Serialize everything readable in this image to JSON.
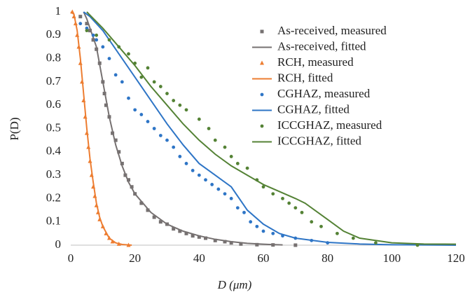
{
  "chart_data": {
    "type": "scatter",
    "xlabel": "D (μm)",
    "ylabel": "P(D)",
    "xlim": [
      0,
      120
    ],
    "xticks": [
      0,
      20,
      40,
      60,
      80,
      100,
      120
    ],
    "ylim": [
      0,
      1
    ],
    "yticks": [
      0,
      0.1,
      0.2,
      0.3,
      0.4,
      0.5,
      0.6,
      0.7,
      0.8,
      0.9,
      1
    ],
    "legend": "top-right",
    "series": [
      {
        "name": "As-received, measured",
        "color": "#767171",
        "style": "marker",
        "marker": "square",
        "x": [
          3,
          5,
          6,
          7,
          8,
          9,
          10,
          10.5,
          11,
          12,
          13,
          14,
          15,
          16,
          17,
          18,
          19,
          20,
          22,
          24,
          26,
          28,
          30,
          32,
          34,
          36,
          38,
          40,
          42,
          45,
          48,
          50,
          53,
          58,
          63,
          70
        ],
        "values": [
          0.98,
          0.95,
          0.92,
          0.88,
          0.84,
          0.78,
          0.7,
          0.65,
          0.6,
          0.55,
          0.48,
          0.45,
          0.4,
          0.35,
          0.3,
          0.28,
          0.25,
          0.22,
          0.18,
          0.15,
          0.12,
          0.1,
          0.09,
          0.07,
          0.06,
          0.05,
          0.04,
          0.035,
          0.03,
          0.02,
          0.015,
          0.01,
          0.005,
          0.002,
          0.001,
          0
        ]
      },
      {
        "name": "As-received, fitted",
        "color": "#767171",
        "style": "line",
        "x": [
          4,
          5,
          8,
          10,
          12,
          14,
          16,
          18,
          20,
          25,
          30,
          35,
          40,
          45,
          50,
          55,
          60,
          66
        ],
        "values": [
          1,
          0.97,
          0.85,
          0.7,
          0.55,
          0.43,
          0.34,
          0.27,
          0.22,
          0.14,
          0.09,
          0.06,
          0.04,
          0.025,
          0.015,
          0.008,
          0.004,
          0.001
        ]
      },
      {
        "name": "RCH, measured",
        "color": "#ed7d31",
        "style": "marker",
        "marker": "triangle",
        "x": [
          0.5,
          1,
          1.5,
          2,
          2.5,
          3,
          3.5,
          4,
          4.5,
          5,
          5.5,
          6,
          6.5,
          7,
          7.5,
          8,
          8.5,
          9,
          10,
          11,
          12,
          13,
          15,
          18
        ],
        "values": [
          1,
          0.98,
          0.95,
          0.9,
          0.85,
          0.78,
          0.7,
          0.62,
          0.55,
          0.48,
          0.42,
          0.36,
          0.3,
          0.25,
          0.21,
          0.17,
          0.14,
          0.11,
          0.08,
          0.05,
          0.03,
          0.015,
          0.005,
          0
        ]
      },
      {
        "name": "RCH, fitted",
        "color": "#ed7d31",
        "style": "line",
        "x": [
          0,
          1,
          2,
          3,
          4,
          5,
          6,
          7,
          8,
          9,
          10,
          12,
          14,
          16,
          19
        ],
        "values": [
          1,
          0.99,
          0.92,
          0.8,
          0.65,
          0.5,
          0.37,
          0.27,
          0.18,
          0.12,
          0.08,
          0.03,
          0.01,
          0.003,
          0
        ]
      },
      {
        "name": "CGHAZ, measured",
        "color": "#2e75c6",
        "style": "marker",
        "marker": "circle",
        "x": [
          3,
          5,
          7,
          8,
          10,
          12,
          14,
          16,
          18,
          20,
          22,
          24,
          26,
          28,
          30,
          32,
          34,
          36,
          38,
          40,
          42,
          44,
          46,
          48,
          50,
          52,
          54,
          56,
          58,
          60,
          63,
          66,
          70,
          75,
          80
        ],
        "values": [
          0.95,
          0.93,
          0.9,
          0.88,
          0.85,
          0.8,
          0.73,
          0.7,
          0.63,
          0.58,
          0.56,
          0.53,
          0.5,
          0.47,
          0.45,
          0.42,
          0.38,
          0.35,
          0.32,
          0.3,
          0.28,
          0.26,
          0.24,
          0.22,
          0.2,
          0.16,
          0.14,
          0.1,
          0.08,
          0.06,
          0.05,
          0.04,
          0.03,
          0.02,
          0.01
        ]
      },
      {
        "name": "CGHAZ, fitted",
        "color": "#2e75c6",
        "style": "line",
        "x": [
          4,
          6,
          10,
          15,
          20,
          25,
          30,
          35,
          40,
          45,
          50,
          55,
          60,
          65,
          70,
          80,
          90,
          100,
          120
        ],
        "values": [
          1,
          0.98,
          0.92,
          0.82,
          0.72,
          0.62,
          0.52,
          0.43,
          0.35,
          0.3,
          0.25,
          0.15,
          0.09,
          0.05,
          0.03,
          0.012,
          0.005,
          0.002,
          0
        ]
      },
      {
        "name": "ICCGHAZ, measured",
        "color": "#548235",
        "style": "marker",
        "marker": "circle",
        "x": [
          5,
          8,
          12,
          15,
          18,
          20,
          22,
          24,
          26,
          28,
          30,
          32,
          34,
          36,
          40,
          43,
          45,
          48,
          50,
          52,
          55,
          58,
          60,
          63,
          66,
          68,
          70,
          72,
          75,
          78,
          83,
          88,
          95,
          108
        ],
        "values": [
          0.92,
          0.9,
          0.88,
          0.85,
          0.82,
          0.78,
          0.72,
          0.76,
          0.7,
          0.68,
          0.65,
          0.62,
          0.6,
          0.58,
          0.54,
          0.5,
          0.45,
          0.42,
          0.38,
          0.35,
          0.33,
          0.28,
          0.25,
          0.22,
          0.2,
          0.18,
          0.16,
          0.14,
          0.1,
          0.08,
          0.05,
          0.03,
          0.01,
          0
        ]
      },
      {
        "name": "ICCGHAZ, fitted",
        "color": "#548235",
        "style": "line",
        "x": [
          5,
          10,
          15,
          20,
          25,
          30,
          35,
          40,
          45,
          50,
          55,
          60,
          65,
          70,
          73,
          80,
          85,
          90,
          100,
          110,
          120
        ],
        "values": [
          1,
          0.93,
          0.85,
          0.77,
          0.68,
          0.6,
          0.52,
          0.45,
          0.39,
          0.34,
          0.3,
          0.26,
          0.23,
          0.2,
          0.18,
          0.11,
          0.06,
          0.03,
          0.01,
          0.005,
          0.004
        ]
      }
    ]
  }
}
